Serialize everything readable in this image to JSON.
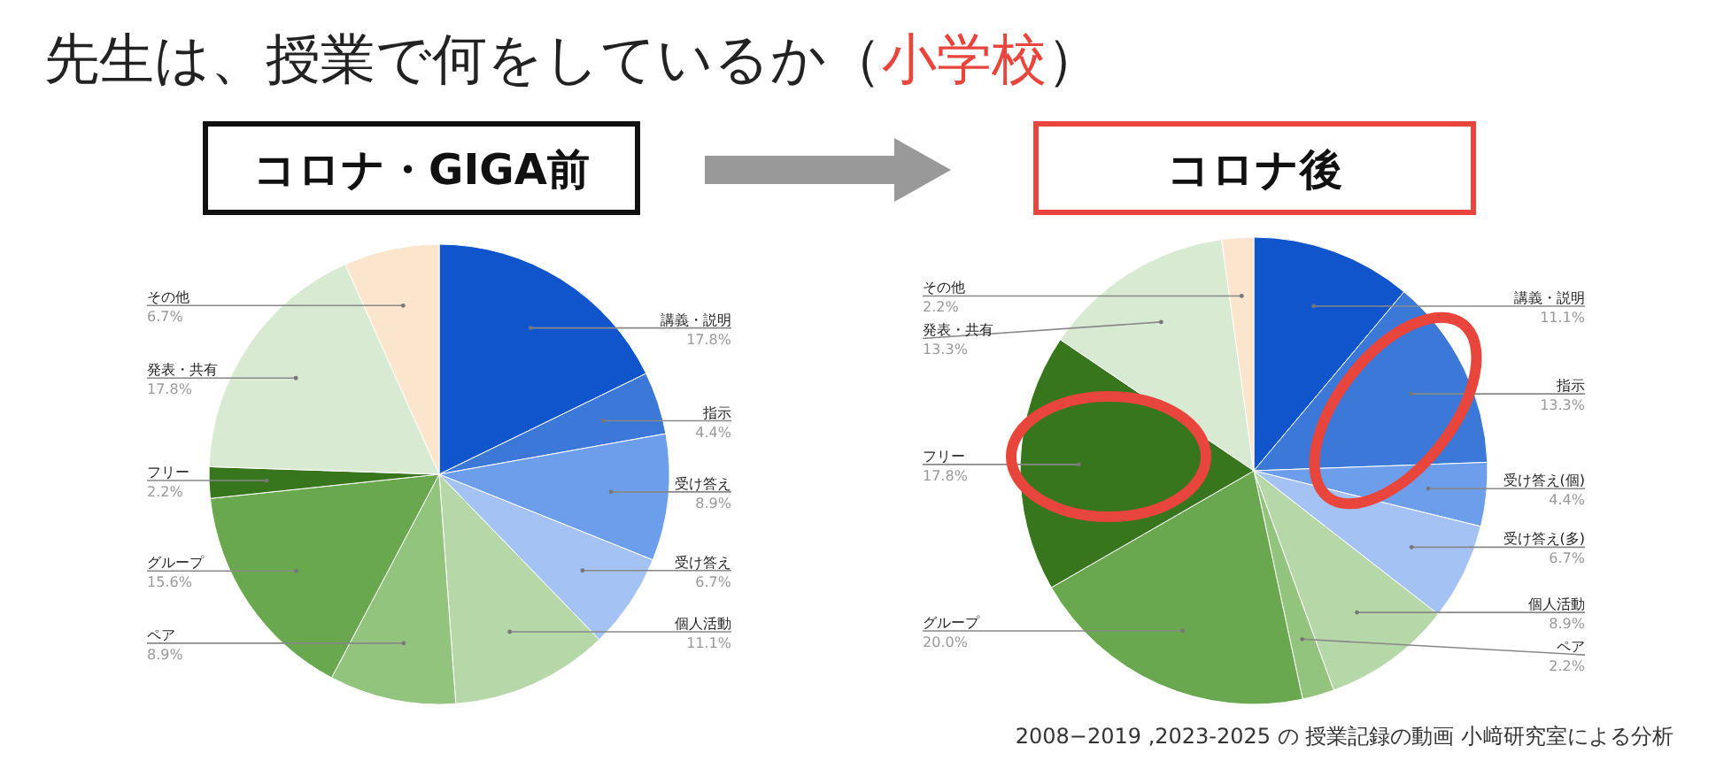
{
  "chart_data": [
    {
      "type": "pie",
      "title": "コロナ・GIGA前",
      "annotations": [
        "先生は、授業で何をしているか（小学校）"
      ],
      "categories": [
        "講義・説明",
        "指示",
        "受け答え",
        "受け答え",
        "個人活動",
        "ペア",
        "グループ",
        "フリー",
        "発表・共有",
        "その他"
      ],
      "values": [
        17.8,
        4.4,
        8.9,
        6.7,
        11.1,
        8.9,
        15.6,
        2.2,
        17.8,
        6.7
      ],
      "value_labels": [
        "17.8%",
        "4.4%",
        "8.9%",
        "6.7%",
        "11.1%",
        "8.9%",
        "15.6%",
        "2.2%",
        "17.8%",
        "6.7%"
      ],
      "colors": [
        "#1155cc",
        "#3c78d8",
        "#6d9eeb",
        "#a4c2f4",
        "#b6d7a8",
        "#93c47d",
        "#6aa84f",
        "#38761d",
        "#d9ead3",
        "#fce5cd"
      ]
    },
    {
      "type": "pie",
      "title": "コロナ後",
      "annotations": [
        "2008−2019 ,2023-2025 の 授業記録の動画 小﨑研究室による分析"
      ],
      "categories": [
        "講義・説明",
        "指示",
        "受け答え(個)",
        "受け答え(多)",
        "個人活動",
        "ペア",
        "グループ",
        "フリー",
        "発表・共有",
        "その他"
      ],
      "values": [
        11.1,
        13.3,
        4.4,
        6.7,
        8.9,
        2.2,
        20.0,
        17.8,
        13.3,
        2.2
      ],
      "value_labels": [
        "11.1%",
        "13.3%",
        "4.4%",
        "6.7%",
        "8.9%",
        "2.2%",
        "20.0%",
        "17.8%",
        "13.3%",
        "2.2%"
      ],
      "colors": [
        "#1155cc",
        "#3c78d8",
        "#6d9eeb",
        "#a4c2f4",
        "#b6d7a8",
        "#93c47d",
        "#6aa84f",
        "#38761d",
        "#d9ead3",
        "#fce5cd"
      ]
    }
  ]
}
